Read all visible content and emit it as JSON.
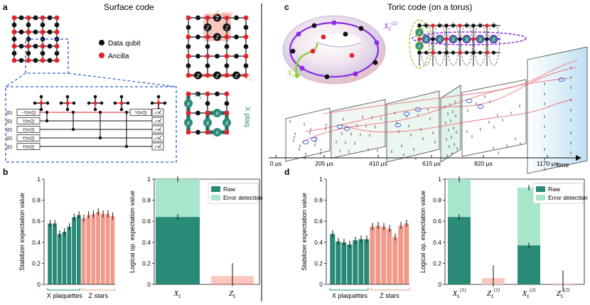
{
  "panels": {
    "a": {
      "letter": "a",
      "title": "Surface code"
    },
    "b": {
      "letter": "b"
    },
    "c": {
      "letter": "c",
      "title": "Toric code (on a torus)"
    },
    "d": {
      "letter": "d"
    }
  },
  "legend_a": {
    "data_qubit": "Data qubit",
    "ancilla": "Ancilla"
  },
  "lattice_labels": {
    "z_star": "Z star",
    "z_logical": "Z",
    "z_logical_sub": "L",
    "x_logical": "X",
    "x_logical_sub": "L",
    "x_plaq": "X plaq."
  },
  "circuit": {
    "kets": [
      "|0⟩",
      "|0⟩",
      "|0⟩",
      "|0⟩",
      "|0⟩"
    ],
    "gate_pre": "Y(π/2)",
    "gate_pre_neg": "−Y(π/2)",
    "gate_post": "Y(π/2)"
  },
  "gate_letters": {
    "z": "Z",
    "x": "X"
  },
  "torus_labels": {
    "x1": "X",
    "x1_sup": "(1)",
    "x2": "X",
    "x2_sup": "(2)",
    "sub": "L"
  },
  "timeline": {
    "ticks": [
      "0 μs",
      "205 μs",
      "410 μs",
      "615 μs",
      "820 μs",
      "1170 μs"
    ],
    "axis_label": "time"
  },
  "colors": {
    "teal": "#2a8a78",
    "salmon": "#f29a8a",
    "light_teal": "#a8e6cc",
    "light_salmon": "#f9c9c0",
    "ancilla": "#e8202a",
    "purple": "#8a2be2",
    "lime": "#8fd13f"
  },
  "chart_data": [
    {
      "id": "b-stabilizers",
      "type": "bar",
      "ylabel": "Stabilizer expectation value",
      "ylim": [
        0,
        1
      ],
      "yticks": [
        "0",
        "0.2",
        "0.4",
        "0.6",
        "0.8",
        "1"
      ],
      "groups": [
        {
          "name": "X plaquettes",
          "color": "teal",
          "values": [
            0.58,
            0.58,
            0.48,
            0.5,
            0.55,
            0.64,
            0.66
          ]
        },
        {
          "name": "Z stars",
          "color": "salmon",
          "values": [
            0.63,
            0.66,
            0.67,
            0.69,
            0.67,
            0.67,
            0.65
          ]
        }
      ]
    },
    {
      "id": "b-logical",
      "type": "bar",
      "ylabel": "Logical op. expectation value",
      "ylim": [
        0,
        1
      ],
      "yticks": [
        "0",
        "0.2",
        "0.4",
        "0.6",
        "0.8",
        "1"
      ],
      "legend": [
        "Raw",
        "Error detection"
      ],
      "categories": [
        "X",
        "Z"
      ],
      "sub": "L",
      "series": [
        {
          "name": "Raw",
          "values": [
            0.64,
            0.01
          ]
        },
        {
          "name": "Error detection",
          "values": [
            1.0,
            0.08
          ]
        }
      ]
    },
    {
      "id": "d-stabilizers",
      "type": "bar",
      "ylabel": "Stabilizer expectation value",
      "ylim": [
        0,
        1
      ],
      "yticks": [
        "0",
        "0.2",
        "0.4",
        "0.6",
        "0.8",
        "1"
      ],
      "groups": [
        {
          "name": "X plaquettes",
          "color": "teal",
          "values": [
            0.48,
            0.41,
            0.4,
            0.38,
            0.42,
            0.43,
            0.43
          ]
        },
        {
          "name": "Z stars",
          "color": "salmon",
          "values": [
            0.55,
            0.56,
            0.55,
            0.53,
            0.45,
            0.56,
            0.58
          ]
        }
      ]
    },
    {
      "id": "d-logical",
      "type": "bar",
      "ylabel": "Logical op. expectation value",
      "ylim": [
        0,
        1
      ],
      "yticks": [
        "0",
        "0.2",
        "0.4",
        "0.6",
        "0.8",
        "1"
      ],
      "legend": [
        "Raw",
        "Error detection"
      ],
      "categories": [
        "X",
        "Z",
        "X",
        "Z"
      ],
      "sups": [
        "(1)",
        "(1)",
        "(2)",
        "(2)"
      ],
      "sub": "L",
      "series": [
        {
          "name": "Raw",
          "values": [
            0.64,
            0.0,
            0.37,
            0.0
          ]
        },
        {
          "name": "Error detection",
          "values": [
            1.0,
            0.06,
            0.92,
            0.01
          ]
        }
      ]
    }
  ]
}
